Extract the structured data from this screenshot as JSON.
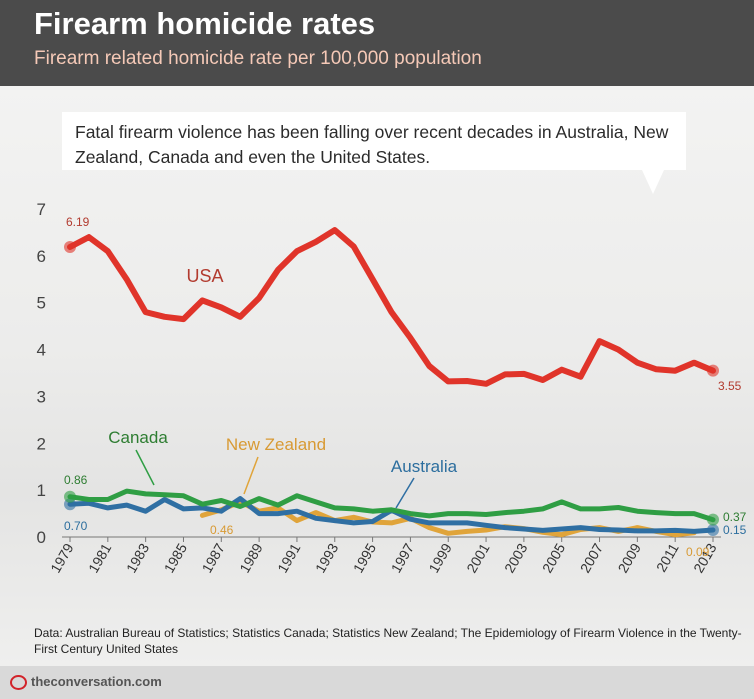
{
  "header": {
    "title": "Firearm homicide rates",
    "subtitle": "Firearm related homicide rate per 100,000 population"
  },
  "callout": {
    "text": "Fatal firearm violence has been falling over recent decades in Australia, New Zealand, Canada and even the United States."
  },
  "source": "Data: Australian Bureau of Statistics; Statistics Canada; Statistics New Zealand; The Epidemiology of Firearm Violence in the Twenty-First Century United States",
  "footer": {
    "site": "theconversation.com"
  },
  "chart_data": {
    "type": "line",
    "title": "Firearm homicide rates",
    "subtitle": "Firearm related homicide rate per 100,000 population",
    "xlabel": "",
    "ylabel": "",
    "xlim": [
      1979,
      2013
    ],
    "ylim": [
      0,
      7
    ],
    "yticks": [
      "0",
      "1",
      "2",
      "3",
      "4",
      "5",
      "6",
      "7"
    ],
    "xticks": [
      "1979",
      "1981",
      "1983",
      "1985",
      "1987",
      "1989",
      "1991",
      "1993",
      "1995",
      "1997",
      "1999",
      "2001",
      "2003",
      "2005",
      "2007",
      "2009",
      "2011",
      "2013"
    ],
    "grid": false,
    "legend": "inline labels",
    "series": [
      {
        "name": "USA",
        "color": "#e0342a",
        "label_color": "#b23b2f",
        "start_label": "6.19",
        "end_label": "3.55",
        "x": [
          1979,
          1980,
          1981,
          1982,
          1983,
          1984,
          1985,
          1986,
          1987,
          1988,
          1989,
          1990,
          1991,
          1992,
          1993,
          1994,
          1995,
          1996,
          1997,
          1998,
          1999,
          2000,
          2001,
          2002,
          2003,
          2004,
          2005,
          2006,
          2007,
          2008,
          2009,
          2010,
          2011,
          2012,
          2013
        ],
        "values": [
          6.19,
          6.4,
          6.1,
          5.5,
          4.8,
          4.7,
          4.65,
          5.05,
          4.9,
          4.7,
          5.1,
          5.7,
          6.1,
          6.3,
          6.55,
          6.2,
          5.5,
          4.8,
          4.25,
          3.65,
          3.32,
          3.33,
          3.27,
          3.47,
          3.48,
          3.35,
          3.57,
          3.42,
          4.18,
          4.0,
          3.72,
          3.58,
          3.55,
          3.72,
          3.55
        ]
      },
      {
        "name": "Canada",
        "color": "#2f9e44",
        "label_color": "#2e7d32",
        "start_label": "0.86",
        "end_label": "0.37",
        "x": [
          1979,
          1980,
          1981,
          1982,
          1983,
          1984,
          1985,
          1986,
          1987,
          1988,
          1989,
          1990,
          1991,
          1992,
          1993,
          1994,
          1995,
          1996,
          1997,
          1998,
          1999,
          2000,
          2001,
          2002,
          2003,
          2004,
          2005,
          2006,
          2007,
          2008,
          2009,
          2010,
          2011,
          2012,
          2013
        ],
        "values": [
          0.86,
          0.8,
          0.8,
          0.98,
          0.92,
          0.9,
          0.88,
          0.7,
          0.78,
          0.65,
          0.82,
          0.68,
          0.88,
          0.75,
          0.62,
          0.6,
          0.55,
          0.58,
          0.5,
          0.45,
          0.5,
          0.5,
          0.48,
          0.52,
          0.55,
          0.6,
          0.75,
          0.6,
          0.6,
          0.63,
          0.55,
          0.52,
          0.5,
          0.5,
          0.37
        ]
      },
      {
        "name": "Australia",
        "color": "#2f6fa3",
        "label_color": "#2c6e9e",
        "start_label": "0.70",
        "end_label": "0.15",
        "x": [
          1979,
          1980,
          1981,
          1982,
          1983,
          1984,
          1985,
          1986,
          1987,
          1988,
          1989,
          1990,
          1991,
          1992,
          1993,
          1994,
          1995,
          1996,
          1997,
          1998,
          1999,
          2000,
          2001,
          2002,
          2003,
          2004,
          2005,
          2006,
          2007,
          2008,
          2009,
          2010,
          2011,
          2012,
          2013
        ],
        "values": [
          0.7,
          0.72,
          0.62,
          0.68,
          0.55,
          0.8,
          0.6,
          0.62,
          0.55,
          0.82,
          0.5,
          0.5,
          0.55,
          0.4,
          0.35,
          0.3,
          0.33,
          0.57,
          0.38,
          0.3,
          0.3,
          0.3,
          0.25,
          0.2,
          0.17,
          0.14,
          0.17,
          0.2,
          0.16,
          0.15,
          0.13,
          0.13,
          0.14,
          0.12,
          0.15
        ]
      },
      {
        "name": "New Zealand",
        "color": "#e0a43a",
        "label_color": "#d89a34",
        "start_label": "0.46",
        "end_label": "0.09",
        "x": [
          1986,
          1987,
          1988,
          1989,
          1990,
          1991,
          1992,
          1993,
          1994,
          1995,
          1996,
          1997,
          1998,
          1999,
          2000,
          2001,
          2002,
          2003,
          2004,
          2005,
          2006,
          2007,
          2008,
          2009,
          2010,
          2011,
          2012
        ],
        "values": [
          0.46,
          0.58,
          0.75,
          0.55,
          0.62,
          0.35,
          0.52,
          0.35,
          0.42,
          0.32,
          0.3,
          0.4,
          0.2,
          0.08,
          0.12,
          0.15,
          0.22,
          0.18,
          0.1,
          0.05,
          0.16,
          0.2,
          0.12,
          0.2,
          0.12,
          0.05,
          0.09
        ]
      }
    ]
  }
}
